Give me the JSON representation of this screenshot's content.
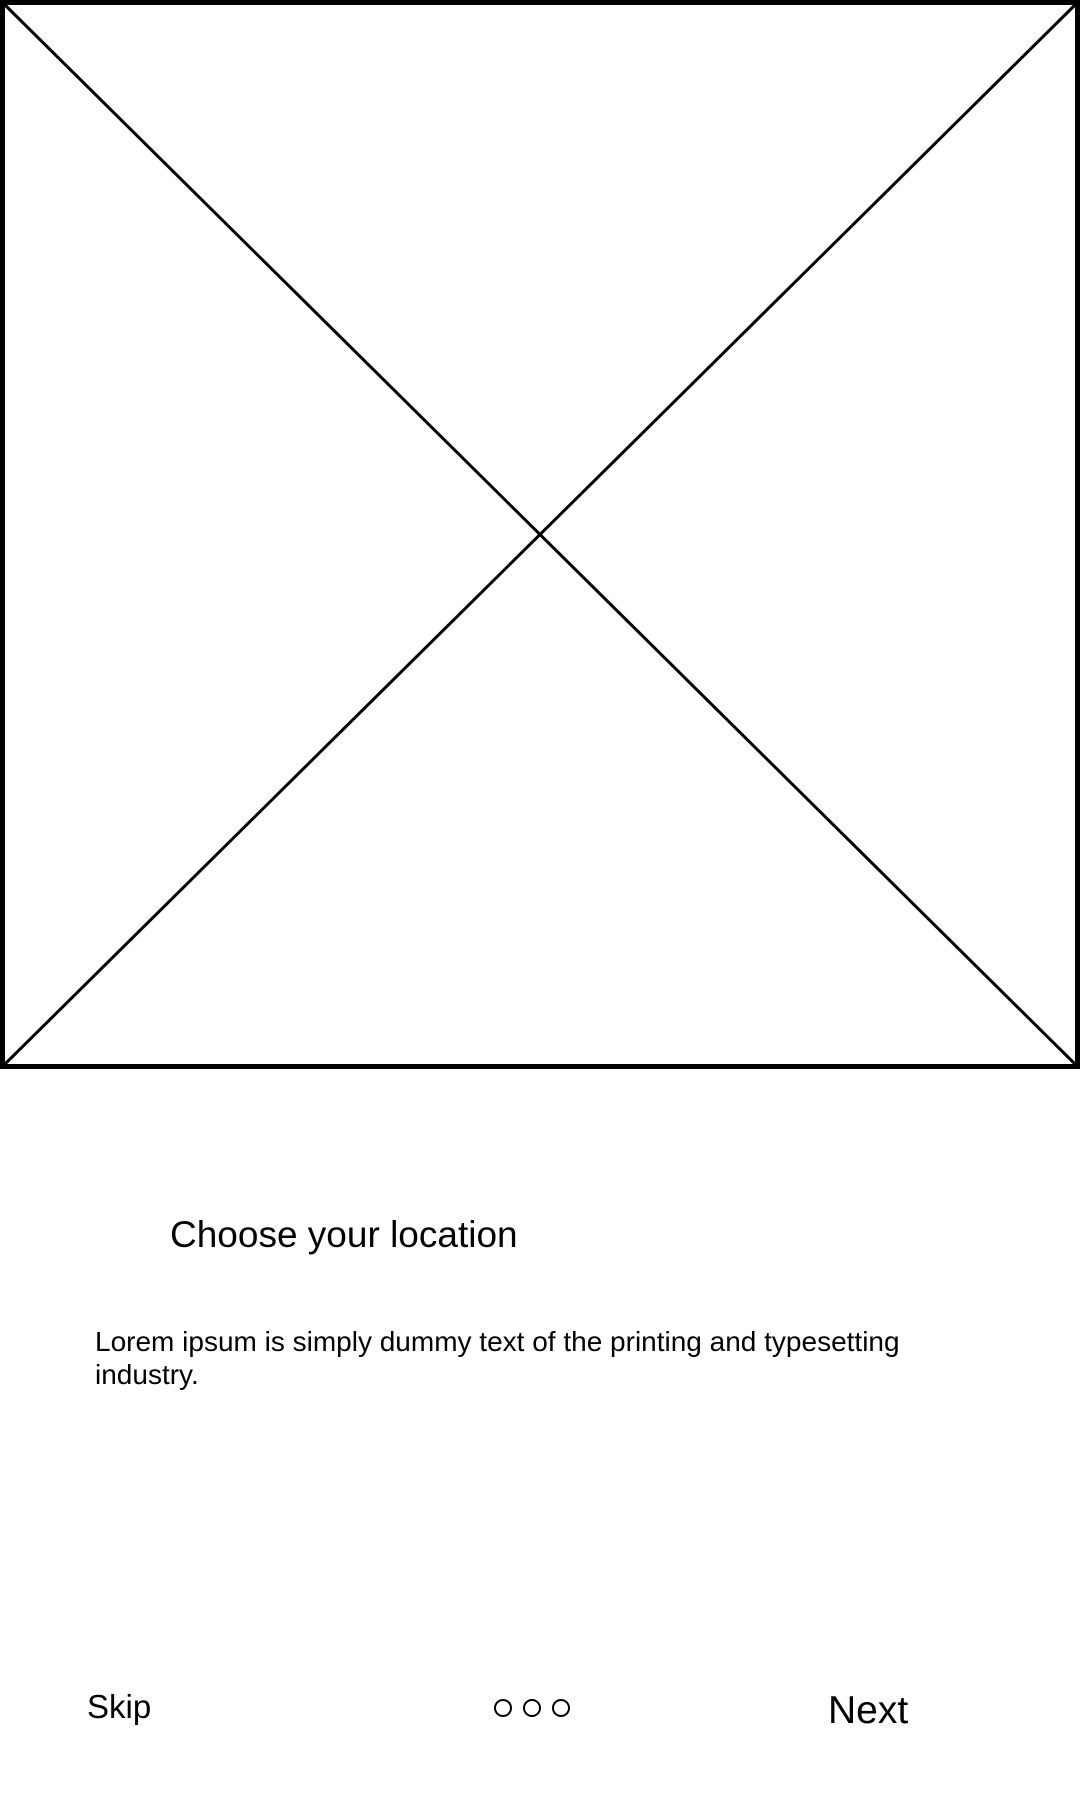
{
  "onboarding": {
    "title": "Choose your location",
    "description": "Lorem ipsum is simply dummy text of the printing and typesetting industry.",
    "image_placeholder_icon": "image-placeholder-x",
    "pager": {
      "total_pages": 3
    },
    "skip_label": "Skip",
    "next_label": "Next"
  },
  "colors": {
    "background": "#ffffff",
    "foreground": "#000000"
  }
}
